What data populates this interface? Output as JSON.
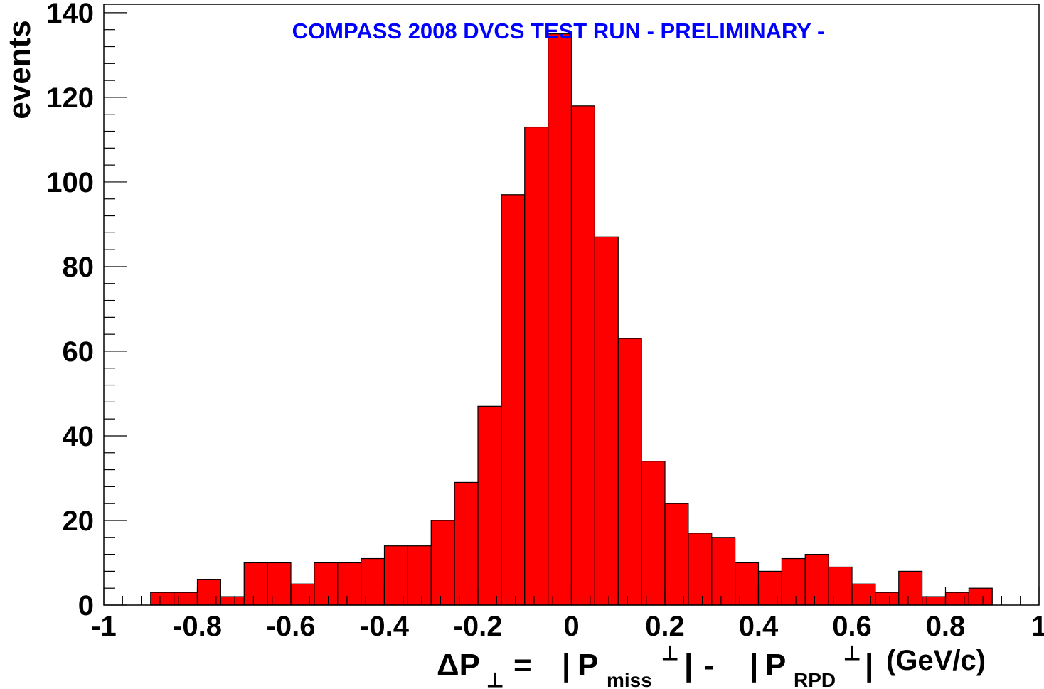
{
  "chart_data": {
    "type": "bar",
    "title": "COMPASS 2008 DVCS TEST RUN  - PRELIMINARY -",
    "ylabel": "events",
    "xlabel_parts": {
      "delta": "ΔP",
      "perp": "⊥",
      "equals": " = ",
      "bar": "|",
      "p": "P",
      "miss": "miss",
      "minus": " - ",
      "rpd": "RPD",
      "unit": "(GeV/c)"
    },
    "xlim": [
      -1,
      1
    ],
    "ylim": [
      0,
      142
    ],
    "xticks": [
      "-1",
      "-0.8",
      "-0.6",
      "-0.4",
      "-0.2",
      "0",
      "0.2",
      "0.4",
      "0.6",
      "0.8",
      "1"
    ],
    "xtick_values": [
      -1,
      -0.8,
      -0.6,
      -0.4,
      -0.2,
      0,
      0.2,
      0.4,
      0.6,
      0.8,
      1
    ],
    "yticks": [
      "0",
      "20",
      "40",
      "60",
      "80",
      "100",
      "120",
      "140"
    ],
    "ytick_values": [
      0,
      20,
      40,
      60,
      80,
      100,
      120,
      140
    ],
    "bin_edges_start": -1,
    "bin_width": 0.05,
    "values": [
      0,
      0,
      3,
      3,
      6,
      2,
      10,
      10,
      5,
      10,
      10,
      11,
      14,
      14,
      20,
      29,
      47,
      97,
      113,
      135,
      118,
      87,
      63,
      34,
      24,
      17,
      16,
      10,
      8,
      11,
      12,
      9,
      5,
      3,
      8,
      2,
      3,
      4,
      0,
      0
    ],
    "bar_color": "#ff0000",
    "title_color": "#0000ff",
    "grid": false
  }
}
